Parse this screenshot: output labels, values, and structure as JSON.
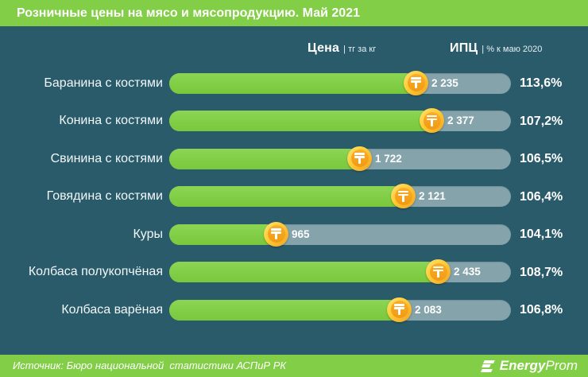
{
  "title": "Розничные цены на мясо и мясопродукцию. Май 2021",
  "columns": {
    "price_label": "Цена",
    "price_unit": "| тг за кг",
    "ipc_label": "ИПЦ",
    "ipc_unit": "| % к маю 2020"
  },
  "chart_data": {
    "type": "bar",
    "orientation": "horizontal",
    "title": "Розничные цены на мясо и мясопродукцию. Май 2021",
    "categories": [
      "Баранина с костями",
      "Конина с костями",
      "Свинина с костями",
      "Говядина с костями",
      "Куры",
      "Колбаса полукопчёная",
      "Колбаса варёная"
    ],
    "series": [
      {
        "name": "Цена, тг за кг",
        "values": [
          2235,
          2377,
          1722,
          2121,
          965,
          2435,
          2083
        ]
      },
      {
        "name": "ИПЦ, % к маю 2020",
        "values": [
          113.6,
          107.2,
          106.5,
          106.4,
          104.1,
          108.7,
          106.8
        ]
      }
    ],
    "xlim": [
      0,
      3100
    ],
    "grid": false,
    "legend": "none"
  },
  "rows": [
    {
      "label": "Баранина с костями",
      "value": 2235,
      "value_label": "2 235",
      "ipc_label": "113,6%"
    },
    {
      "label": "Конина с костями",
      "value": 2377,
      "value_label": "2 377",
      "ipc_label": "107,2%"
    },
    {
      "label": "Свинина с костями",
      "value": 1722,
      "value_label": "1 722",
      "ipc_label": "106,5%"
    },
    {
      "label": "Говядина с костями",
      "value": 2121,
      "value_label": "2 121",
      "ipc_label": "106,4%"
    },
    {
      "label": "Куры",
      "value": 965,
      "value_label": "965",
      "ipc_label": "104,1%"
    },
    {
      "label": "Колбаса полукопчёная",
      "value": 2435,
      "value_label": "2 435",
      "ipc_label": "108,7%"
    },
    {
      "label": "Колбаса варёная",
      "value": 2083,
      "value_label": "2 083",
      "ipc_label": "106,8%"
    }
  ],
  "footer": {
    "source": "Источник: Бюро национальной  статистики АСПиР РК",
    "logo_energy": "Energy",
    "logo_prom": "Prom"
  },
  "icons": {
    "coin": "tenge-coin-icon",
    "logo": "energyprom-logo-icon"
  },
  "colors": {
    "background": "#295B6A",
    "header_green": "#82CE46",
    "bar_fill_green": "#82CD46",
    "bar_track_gray": "#84A3AB",
    "coin_ring_gold": "#FFCB33",
    "coin_center_orange": "#F6A41C",
    "text_white": "#FFFFFF"
  }
}
